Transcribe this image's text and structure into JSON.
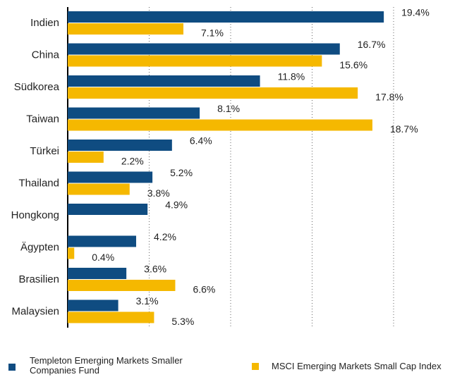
{
  "chart_data": {
    "type": "bar",
    "orientation": "horizontal",
    "categories": [
      "Indien",
      "China",
      "Südkorea",
      "Taiwan",
      "Türkei",
      "Thailand",
      "Hongkong",
      "Ägypten",
      "Brasilien",
      "Malaysien"
    ],
    "series": [
      {
        "name": "Templeton Emerging Markets Smaller Companies Fund",
        "color": "#0f4c81",
        "values": [
          19.4,
          16.7,
          11.8,
          8.1,
          6.4,
          5.2,
          4.9,
          4.2,
          3.6,
          3.1
        ],
        "value_labels": [
          "19.4%",
          "16.7%",
          "11.8%",
          "8.1%",
          "6.4%",
          "5.2%",
          "4.9%",
          "4.2%",
          "3.6%",
          "3.1%"
        ]
      },
      {
        "name": "MSCI Emerging Markets Small Cap Index",
        "color": "#f5b800",
        "values": [
          7.1,
          15.6,
          17.8,
          18.7,
          2.2,
          3.8,
          null,
          0.4,
          6.6,
          5.3
        ],
        "value_labels": [
          "7.1%",
          "15.6%",
          "17.8%",
          "18.7%",
          "2.2%",
          "3.8%",
          null,
          "0.4%",
          "6.6%",
          "5.3%"
        ]
      }
    ],
    "xlim": [
      0,
      20
    ],
    "xticks": [
      0,
      5,
      10,
      15,
      20
    ],
    "grid": true,
    "legend": "bottom"
  }
}
